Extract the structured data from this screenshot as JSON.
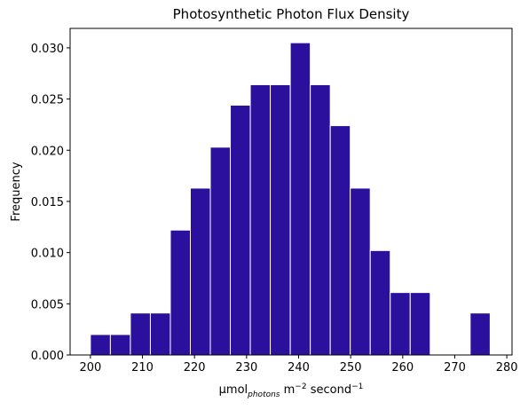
{
  "chart_data": {
    "type": "histogram",
    "title": "Photosynthetic Photon Flux Density",
    "x_label": [
      "μmol",
      "photons",
      " m",
      "−2",
      " second",
      "−1"
    ],
    "y_label": "Frequency",
    "bins": [
      200,
      203.84,
      207.68,
      211.52,
      215.36,
      219.2,
      223.04,
      226.88,
      230.72,
      234.56,
      238.4,
      242.24,
      246.08,
      249.92,
      253.76,
      257.6,
      261.44,
      265.28,
      269.12,
      272.96,
      276.8
    ],
    "values": [
      0.002,
      0.002,
      0.0041,
      0.0041,
      0.0122,
      0.0163,
      0.0203,
      0.0244,
      0.0264,
      0.0264,
      0.0305,
      0.0264,
      0.0224,
      0.0163,
      0.0102,
      0.0061,
      0.0061,
      0,
      0,
      0.0041
    ],
    "color": "#2b109e",
    "edge_color": "#ffffff",
    "xlim": [
      196.1,
      281.0
    ],
    "ylim": [
      0,
      0.0319
    ],
    "xticks": [
      200,
      210,
      220,
      230,
      240,
      250,
      260,
      270,
      280
    ],
    "yticks": [
      {
        "value": 0,
        "label": "0.000"
      },
      {
        "value": 0.005,
        "label": "0.005"
      },
      {
        "value": 0.01,
        "label": "0.010"
      },
      {
        "value": 0.015,
        "label": "0.015"
      },
      {
        "value": 0.02,
        "label": "0.020"
      },
      {
        "value": 0.025,
        "label": "0.025"
      },
      {
        "value": 0.03,
        "label": "0.030"
      }
    ]
  }
}
